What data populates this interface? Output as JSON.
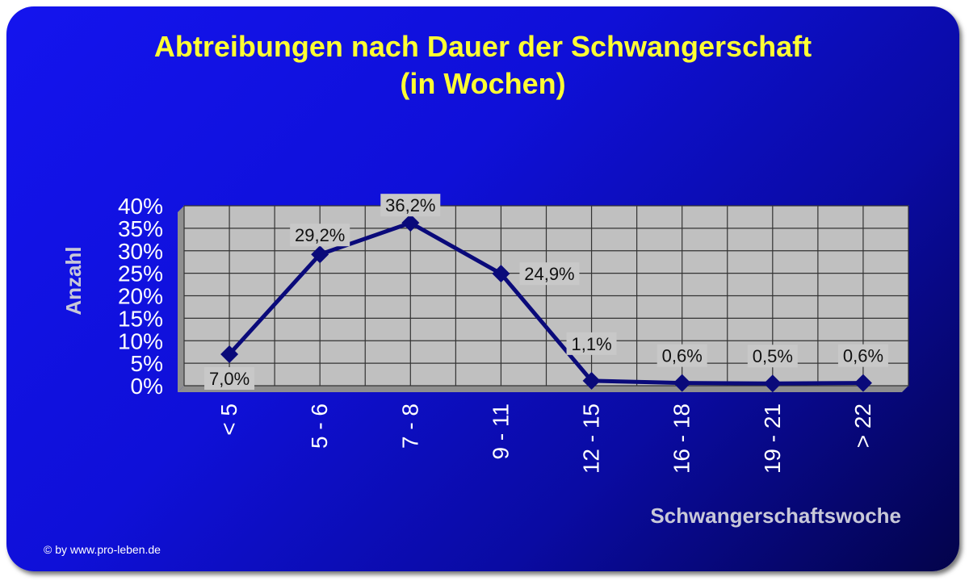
{
  "chart_data": {
    "type": "line",
    "title": [
      "Abtreibungen nach Dauer der Schwangerschaft",
      "(in Wochen)"
    ],
    "xlabel": "Schwangerschaftswoche",
    "ylabel": "Anzahl",
    "categories": [
      "< 5",
      "5 - 6",
      "7 - 8",
      "9 - 11",
      "12 - 15",
      "16 - 18",
      "19 - 21",
      "> 22"
    ],
    "series": [
      {
        "values": [
          7.0,
          29.2,
          36.2,
          24.9,
          1.1,
          0.6,
          0.5,
          0.6
        ],
        "data_labels": [
          "7,0%",
          "29,2%",
          "36,2%",
          "24,9%",
          "1,1%",
          "0,6%",
          "0,5%",
          "0,6%"
        ]
      }
    ],
    "ylim": [
      0,
      40
    ],
    "yticks": [
      0,
      5,
      10,
      15,
      20,
      25,
      30,
      35,
      40
    ],
    "ytick_labels": [
      "0%",
      "5%",
      "10%",
      "15%",
      "20%",
      "25%",
      "30%",
      "35%",
      "40%"
    ],
    "grid": true,
    "colors": {
      "plot_background": "#c0c0c0",
      "line": "#0a0a7a",
      "title": "#ffff33",
      "card_start": "#1414ee",
      "card_end": "#03034a"
    }
  },
  "footer": {
    "credit": "© by www.pro-leben.de"
  }
}
